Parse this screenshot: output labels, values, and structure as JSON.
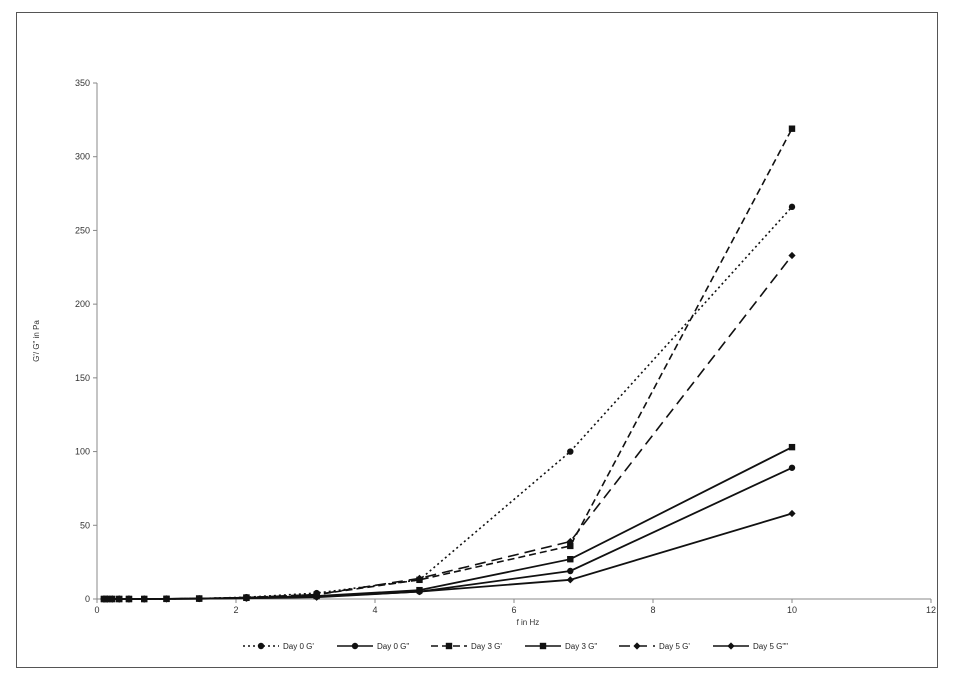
{
  "chart_data": {
    "type": "line",
    "title": "",
    "xlabel": "f in Hz",
    "ylabel": "G'/ G\" in Pa",
    "xlim": [
      0,
      12
    ],
    "ylim": [
      0,
      350
    ],
    "xticks": [
      0,
      2,
      4,
      6,
      8,
      10,
      12
    ],
    "yticks": [
      0,
      50,
      100,
      150,
      200,
      250,
      300,
      350
    ],
    "grid": false,
    "legend_position": "bottom",
    "series": [
      {
        "name": "Day 0 G'",
        "dash": "dotted",
        "marker": "circle",
        "x": [
          0.1,
          0.15,
          0.22,
          0.32,
          0.46,
          0.68,
          1,
          1.47,
          2.15,
          3.16,
          4.64,
          6.81,
          10
        ],
        "y": [
          0,
          0,
          0,
          0,
          0,
          0,
          0.1,
          0.3,
          1.2,
          4,
          13,
          100,
          266
        ]
      },
      {
        "name": "Day 0 G\"",
        "dash": "solid",
        "marker": "circle",
        "x": [
          0.1,
          0.15,
          0.22,
          0.32,
          0.46,
          0.68,
          1,
          1.47,
          2.15,
          3.16,
          4.64,
          6.81,
          10
        ],
        "y": [
          0,
          0,
          0,
          0,
          0,
          0,
          0.1,
          0.2,
          0.6,
          1.5,
          5,
          19,
          89
        ]
      },
      {
        "name": "Day 3 G'",
        "dash": "dashed",
        "marker": "square",
        "x": [
          0.1,
          0.15,
          0.22,
          0.32,
          0.46,
          0.68,
          1,
          1.47,
          2.15,
          3.16,
          4.64,
          6.81,
          10
        ],
        "y": [
          0,
          0,
          0,
          0,
          0,
          0,
          0.1,
          0.3,
          1,
          3,
          13,
          36,
          319
        ]
      },
      {
        "name": "Day 3 G\"",
        "dash": "solid",
        "marker": "square",
        "x": [
          0.1,
          0.15,
          0.22,
          0.32,
          0.46,
          0.68,
          1,
          1.47,
          2.15,
          3.16,
          4.64,
          6.81,
          10
        ],
        "y": [
          0,
          0,
          0,
          0,
          0,
          0,
          0.1,
          0.3,
          0.8,
          2,
          6,
          27,
          103
        ]
      },
      {
        "name": "Day 5 G'",
        "dash": "longdash",
        "marker": "diamond",
        "x": [
          0.1,
          0.15,
          0.22,
          0.32,
          0.46,
          0.68,
          1,
          1.47,
          2.15,
          3.16,
          4.64,
          6.81,
          10
        ],
        "y": [
          0,
          0,
          0,
          0,
          0,
          0,
          0.1,
          0.3,
          1,
          3,
          14,
          39,
          233
        ]
      },
      {
        "name": "Day 5 G\"\"",
        "dash": "solid",
        "marker": "diamond",
        "x": [
          0.1,
          0.15,
          0.22,
          0.32,
          0.46,
          0.68,
          1,
          1.47,
          2.15,
          3.16,
          4.64,
          6.81,
          10
        ],
        "y": [
          0,
          0,
          0,
          0,
          0,
          0,
          0.1,
          0.2,
          0.5,
          1.2,
          5,
          13,
          58
        ]
      }
    ]
  }
}
